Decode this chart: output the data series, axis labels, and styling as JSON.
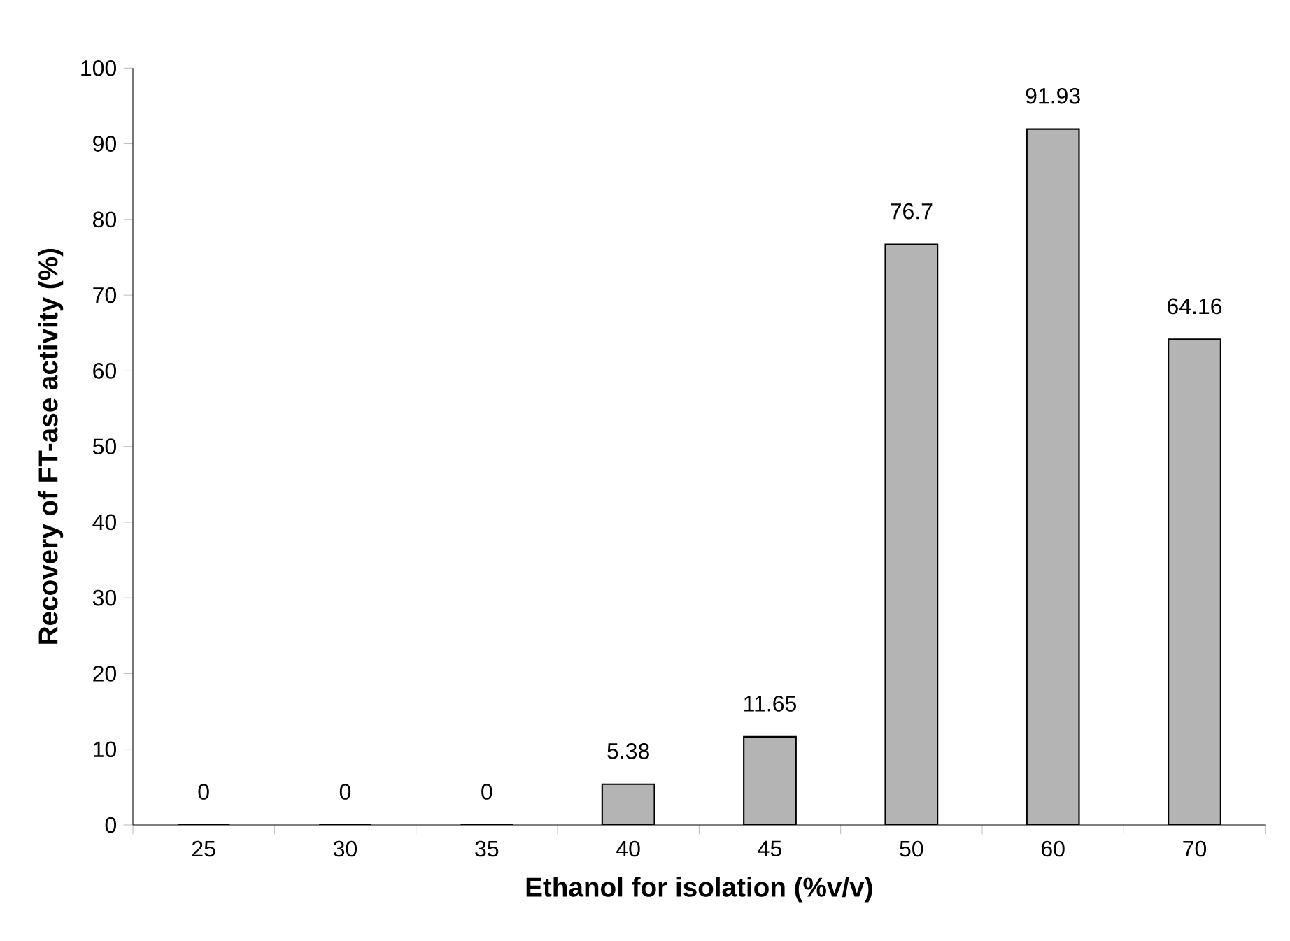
{
  "chart_data": {
    "type": "bar",
    "xlabel": "Ethanol for isolation (%v/v)",
    "ylabel": "Recovery of FT-ase activity (%)",
    "categories": [
      "25",
      "30",
      "35",
      "40",
      "45",
      "50",
      "60",
      "70"
    ],
    "values": [
      0,
      0,
      0,
      5.38,
      11.65,
      76.7,
      91.93,
      64.16
    ],
    "color": "#b4b4b4",
    "ylim": [
      0,
      100
    ],
    "yticks": [
      0,
      10,
      20,
      30,
      40,
      50,
      60,
      70,
      80,
      90,
      100
    ],
    "data_labels": true,
    "grid": false
  }
}
